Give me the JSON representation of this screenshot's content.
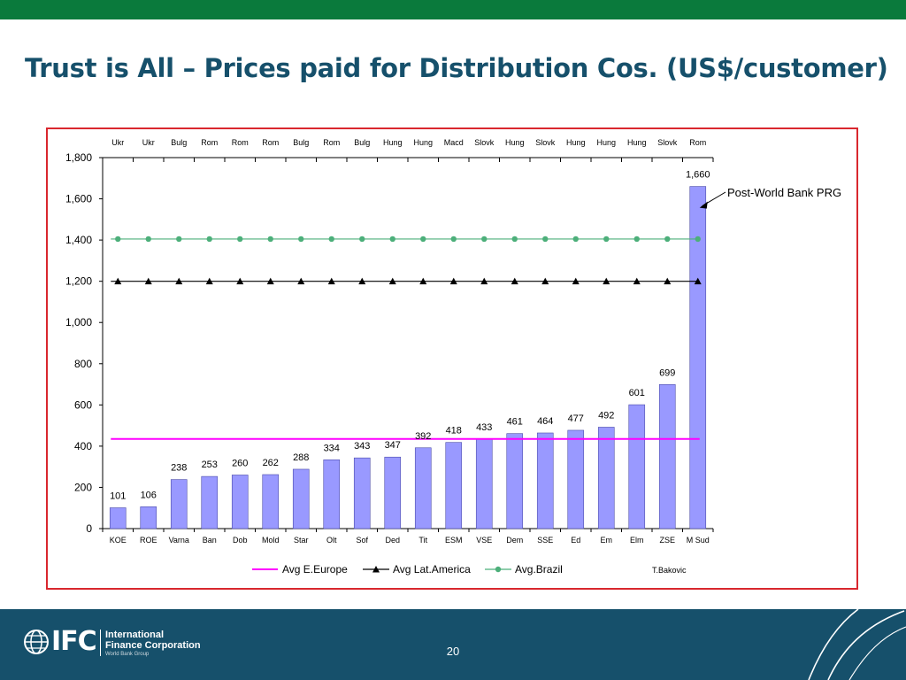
{
  "slide": {
    "title": "Trust is All – Prices paid for Distribution Cos. (US$/customer)",
    "page_number": "20",
    "logo": {
      "mark": "IFC",
      "line1": "International",
      "line2": "Finance Corporation",
      "line3": "World Bank Group"
    },
    "colors": {
      "top_bar": "#0a7a3c",
      "title": "#16506b",
      "footer": "#16506b",
      "frame_border": "#d9272e"
    }
  },
  "chart_data": {
    "type": "bar",
    "categories": [
      "KOE",
      "ROE",
      "Varna",
      "Ban",
      "Dob",
      "Mold",
      "Star",
      "Olt",
      "Sof",
      "Ded",
      "Tit",
      "ESM",
      "VSE",
      "Dem",
      "SSE",
      "Ed",
      "Em",
      "Elm",
      "ZSE",
      "M Sud"
    ],
    "top_labels": [
      "Ukr",
      "Ukr",
      "Bulg",
      "Rom",
      "Rom",
      "Rom",
      "Bulg",
      "Rom",
      "Bulg",
      "Hung",
      "Hung",
      "Macd",
      "Slovk",
      "Hung",
      "Slovk",
      "Hung",
      "Hung",
      "Hung",
      "Slovk",
      "Rom"
    ],
    "values": [
      101,
      106,
      238,
      253,
      260,
      262,
      288,
      334,
      343,
      347,
      392,
      418,
      433,
      461,
      464,
      477,
      492,
      601,
      699,
      1660
    ],
    "value_labels": [
      "101",
      "106",
      "238",
      "253",
      "260",
      "262",
      "288",
      "334",
      "343",
      "347",
      "392",
      "418",
      "433",
      "461",
      "464",
      "477",
      "492",
      "601",
      "699",
      "1,660"
    ],
    "ylim": [
      0,
      1800
    ],
    "yticks": [
      0,
      200,
      400,
      600,
      800,
      1000,
      1200,
      1400,
      1600,
      1800
    ],
    "ytick_labels": [
      "0",
      "200",
      "400",
      "600",
      "800",
      "1,000",
      "1,200",
      "1,400",
      "1,600",
      "1,800"
    ],
    "bar_color": "#9999ff",
    "reference_lines": [
      {
        "name": "Avg E.Europe",
        "value": 435,
        "color": "#ff00ff",
        "marker": "none"
      },
      {
        "name": "Avg Lat.America",
        "value": 1200,
        "color": "#000000",
        "marker": "triangle"
      },
      {
        "name": "Avg.Brazil",
        "value": 1405,
        "color": "#4caf7a",
        "marker": "circle"
      }
    ],
    "annotation": "Post-World Bank PRG",
    "source": "T.Bakovic",
    "legend_position": "bottom",
    "grid": false
  }
}
